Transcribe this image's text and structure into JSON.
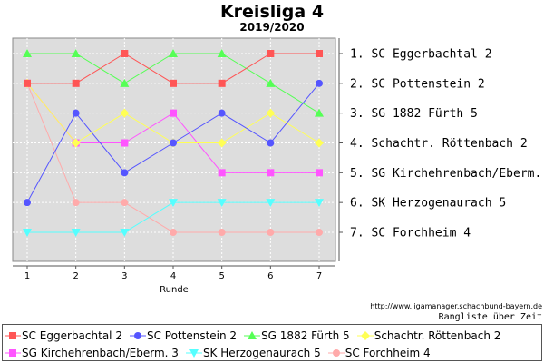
{
  "title": "Kreisliga 4",
  "subtitle": "2019/2020",
  "footer_url": "http://www.ligamanager.schachbund-bayern.de",
  "footer_caption": "Rangliste über Zeit",
  "chart_data": {
    "type": "line",
    "title": "Kreisliga 4",
    "subtitle": "2019/2020",
    "xlabel": "Runde",
    "ylabel": "",
    "x": [
      1,
      2,
      3,
      4,
      5,
      6,
      7
    ],
    "ylim": [
      1,
      7
    ],
    "y_inverted": true,
    "grid": true,
    "plot_background": "#dddddd",
    "legend_position": "bottom",
    "rank_labels": [
      "1. SC Eggerbachtal 2",
      "2. SC Pottenstein 2",
      "3. SG 1882 Fürth 5",
      "4. Schachtr. Röttenbach 2",
      "5. SG Kirchehrenbach/Eberm. 3",
      "6. SK Herzogenaurach 5",
      "7. SC Forchheim 4"
    ],
    "series": [
      {
        "name": "SC Eggerbachtal 2",
        "color": "#ff5555",
        "marker": "square",
        "values": [
          2,
          2,
          1,
          2,
          2,
          1,
          1
        ]
      },
      {
        "name": "SC Pottenstein 2",
        "color": "#5555ff",
        "marker": "circle",
        "values": [
          6,
          3,
          5,
          4,
          3,
          4,
          2
        ]
      },
      {
        "name": "SG 1882 Fürth 5",
        "color": "#55ff55",
        "marker": "triangle-up",
        "values": [
          1,
          1,
          2,
          1,
          1,
          2,
          3
        ]
      },
      {
        "name": "Schachtr. Röttenbach 2",
        "color": "#ffff55",
        "marker": "diamond",
        "values": [
          2,
          4,
          3,
          4,
          4,
          3,
          4
        ]
      },
      {
        "name": "SG Kirchehrenbach/Eberm. 3",
        "color": "#ff55ff",
        "marker": "square",
        "values": [
          2,
          4,
          4,
          3,
          5,
          5,
          5
        ]
      },
      {
        "name": "SK Herzogenaurach 5",
        "color": "#55ffff",
        "marker": "triangle-down",
        "values": [
          7,
          7,
          7,
          6,
          6,
          6,
          6
        ]
      },
      {
        "name": "SC Forchheim 4",
        "color": "#ffaaaa",
        "marker": "circle",
        "values": [
          2,
          6,
          6,
          7,
          7,
          7,
          7
        ]
      }
    ]
  }
}
